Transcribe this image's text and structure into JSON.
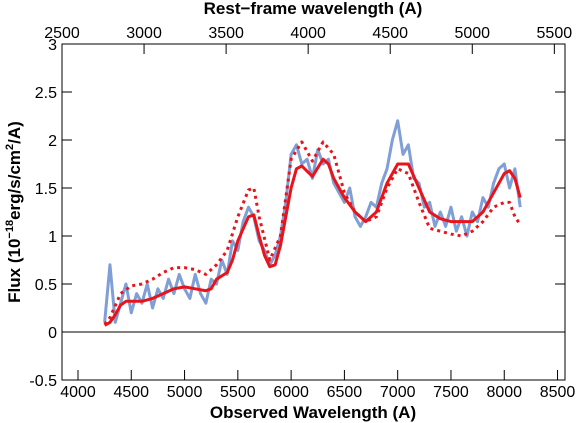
{
  "chart_data": {
    "type": "line",
    "title": "Rest−frame wavelength (A)",
    "xlabel": "Observed Wavelength (A)",
    "ylabel_parts": [
      "Flux (10",
      "−18",
      "erg/s/cm",
      "2",
      "/A)"
    ],
    "xlim": [
      3850,
      8570
    ],
    "xticks": [
      4000,
      4500,
      5000,
      5500,
      6000,
      6500,
      7000,
      7500,
      8000,
      8500
    ],
    "x2lim": [
      2500,
      5565
    ],
    "x2ticks": [
      2500,
      3000,
      3500,
      4000,
      4500,
      5000,
      5500
    ],
    "ylim": [
      -0.5,
      3
    ],
    "yticks": [
      -0.5,
      0,
      0.5,
      1,
      1.5,
      2,
      2.5,
      3
    ],
    "hline": 0,
    "series": [
      {
        "color": "#7f9fd6",
        "width": 3,
        "dash": "solid",
        "x": [
          4250,
          4300,
          4350,
          4400,
          4450,
          4500,
          4550,
          4600,
          4650,
          4700,
          4750,
          4800,
          4850,
          4900,
          4950,
          5000,
          5050,
          5100,
          5150,
          5200,
          5250,
          5300,
          5350,
          5400,
          5450,
          5500,
          5550,
          5600,
          5650,
          5700,
          5750,
          5800,
          5850,
          5900,
          5950,
          6000,
          6050,
          6100,
          6150,
          6200,
          6250,
          6300,
          6350,
          6400,
          6450,
          6500,
          6550,
          6600,
          6650,
          6700,
          6750,
          6800,
          6850,
          6900,
          6950,
          7000,
          7050,
          7100,
          7150,
          7200,
          7250,
          7300,
          7350,
          7400,
          7450,
          7500,
          7550,
          7600,
          7650,
          7700,
          7750,
          7800,
          7850,
          7900,
          7950,
          8000,
          8050,
          8100,
          8150
        ],
        "values": [
          0.1,
          0.7,
          0.1,
          0.3,
          0.5,
          0.2,
          0.4,
          0.3,
          0.5,
          0.25,
          0.45,
          0.35,
          0.55,
          0.4,
          0.6,
          0.45,
          0.35,
          0.6,
          0.4,
          0.3,
          0.55,
          0.5,
          0.75,
          0.6,
          0.95,
          0.85,
          1.15,
          1.3,
          1.2,
          0.95,
          0.85,
          0.7,
          0.8,
          1.0,
          1.35,
          1.85,
          1.95,
          1.75,
          1.8,
          1.6,
          1.9,
          1.75,
          1.8,
          1.55,
          1.45,
          1.35,
          1.5,
          1.2,
          1.1,
          1.2,
          1.35,
          1.3,
          1.55,
          1.7,
          2.0,
          2.2,
          1.85,
          1.95,
          1.6,
          1.55,
          1.3,
          1.35,
          1.1,
          1.25,
          1.1,
          1.3,
          1.05,
          1.2,
          1.0,
          1.25,
          1.15,
          1.4,
          1.3,
          1.55,
          1.7,
          1.75,
          1.5,
          1.7,
          1.3
        ]
      },
      {
        "color": "#e8141c",
        "width": 3,
        "dash": "solid",
        "x": [
          4250,
          4300,
          4350,
          4400,
          4450,
          4500,
          4600,
          4700,
          4800,
          4900,
          5000,
          5100,
          5200,
          5250,
          5300,
          5400,
          5450,
          5500,
          5600,
          5650,
          5700,
          5750,
          5800,
          5850,
          5900,
          6000,
          6050,
          6100,
          6200,
          6300,
          6350,
          6400,
          6500,
          6600,
          6700,
          6800,
          6900,
          7000,
          7100,
          7200,
          7300,
          7400,
          7500,
          7600,
          7700,
          7800,
          7900,
          8000,
          8050,
          8100,
          8150
        ],
        "values": [
          0.07,
          0.1,
          0.18,
          0.28,
          0.32,
          0.32,
          0.32,
          0.35,
          0.4,
          0.45,
          0.47,
          0.45,
          0.43,
          0.45,
          0.55,
          0.62,
          0.75,
          0.95,
          1.2,
          1.22,
          1.0,
          0.8,
          0.68,
          0.7,
          0.9,
          1.5,
          1.7,
          1.73,
          1.62,
          1.8,
          1.75,
          1.6,
          1.4,
          1.25,
          1.15,
          1.25,
          1.55,
          1.75,
          1.75,
          1.5,
          1.25,
          1.18,
          1.15,
          1.15,
          1.15,
          1.25,
          1.45,
          1.65,
          1.68,
          1.6,
          1.4
        ]
      },
      {
        "color": "#e8141c",
        "width": 3,
        "dash": "dotted",
        "x": [
          4250,
          4300,
          4400,
          4500,
          4600,
          4700,
          4800,
          4900,
          5000,
          5100,
          5200,
          5300,
          5400,
          5500,
          5600,
          5650,
          5700,
          5800,
          5900,
          6000,
          6100,
          6200,
          6300,
          6400,
          6500,
          6600,
          6700,
          6800,
          6900,
          7000,
          7100,
          7200,
          7300,
          7400,
          7500,
          7600,
          7700,
          7800,
          7900,
          8000,
          8050,
          8100,
          8150
        ],
        "values": [
          0.08,
          0.15,
          0.4,
          0.48,
          0.5,
          0.55,
          0.62,
          0.67,
          0.67,
          0.65,
          0.6,
          0.7,
          0.85,
          1.2,
          1.48,
          1.5,
          1.2,
          0.75,
          1.0,
          1.8,
          1.98,
          1.78,
          1.98,
          1.85,
          1.45,
          1.25,
          1.15,
          1.2,
          1.5,
          1.7,
          1.65,
          1.35,
          1.08,
          1.05,
          1.02,
          1.0,
          1.05,
          1.15,
          1.3,
          1.35,
          1.35,
          1.2,
          1.12
        ]
      }
    ]
  }
}
